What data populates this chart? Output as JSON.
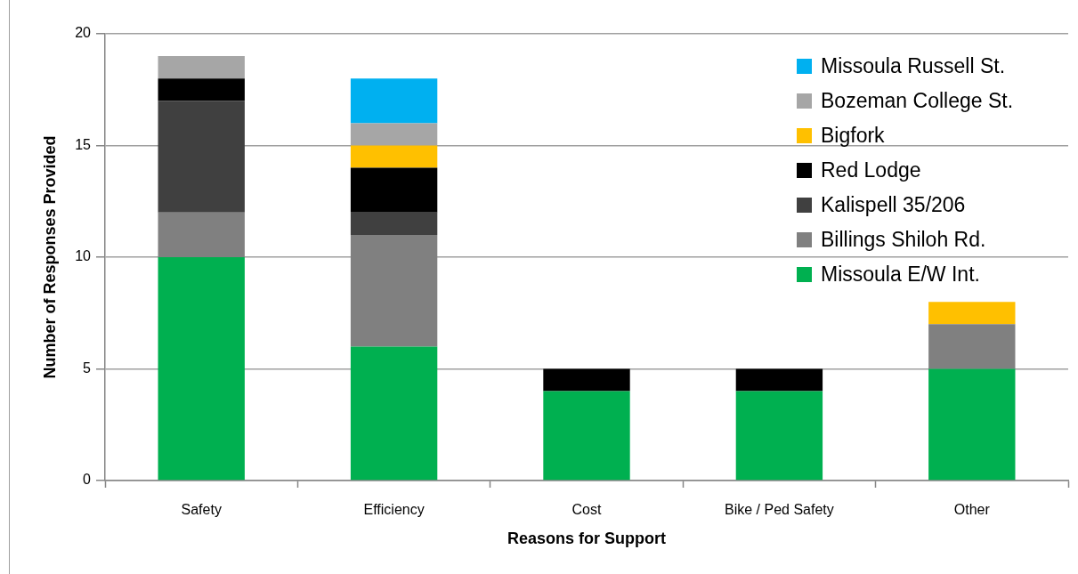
{
  "chart_data": {
    "type": "bar",
    "stacked": true,
    "xlabel": "Reasons for Support",
    "ylabel": "Number of Responses Provided",
    "categories": [
      "Safety",
      "Efficiency",
      "Cost",
      "Bike / Ped Safety",
      "Other"
    ],
    "series": [
      {
        "name": "Missoula E/W Int.",
        "color": "#00b050",
        "values": [
          10,
          6,
          4,
          4,
          5
        ]
      },
      {
        "name": "Billings Shiloh Rd.",
        "color": "#808080",
        "values": [
          2,
          5,
          0,
          0,
          2
        ]
      },
      {
        "name": "Kalispell 35/206",
        "color": "#404040",
        "values": [
          5,
          1,
          0,
          0,
          0
        ]
      },
      {
        "name": "Red Lodge",
        "color": "#000000",
        "values": [
          1,
          2,
          1,
          1,
          0
        ]
      },
      {
        "name": "Bigfork",
        "color": "#ffc000",
        "values": [
          0,
          1,
          0,
          0,
          1
        ]
      },
      {
        "name": "Bozeman College St.",
        "color": "#a6a6a6",
        "values": [
          1,
          1,
          0,
          0,
          0
        ]
      },
      {
        "name": "Missoula Russell St.",
        "color": "#00b0f0",
        "values": [
          0,
          2,
          0,
          0,
          0
        ]
      }
    ],
    "ylim": [
      0,
      20
    ],
    "yticks": [
      0,
      5,
      10,
      15,
      20
    ],
    "grid": "y",
    "legend": "top right"
  }
}
